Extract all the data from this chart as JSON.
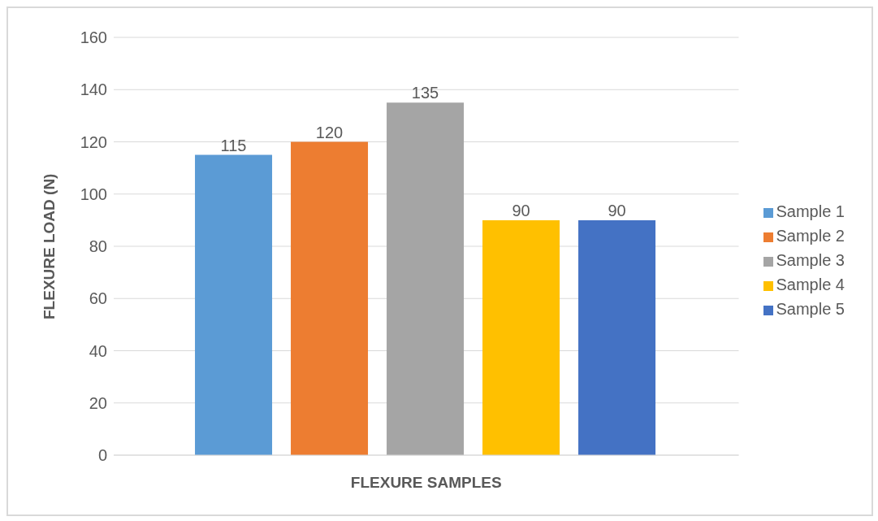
{
  "chart_data": {
    "type": "bar",
    "xlabel": "FLEXURE SAMPLES",
    "ylabel": "FLEXURE LOAD (N)",
    "categories": [
      null
    ],
    "series": [
      {
        "name": "Sample 1",
        "color": "#5b9bd5",
        "values": [
          115
        ]
      },
      {
        "name": "Sample 2",
        "color": "#ed7d31",
        "values": [
          120
        ]
      },
      {
        "name": "Sample 3",
        "color": "#a5a5a5",
        "values": [
          135
        ]
      },
      {
        "name": "Sample 4",
        "color": "#ffc000",
        "values": [
          90
        ]
      },
      {
        "name": "Sample 5",
        "color": "#4472c4",
        "values": [
          90
        ]
      }
    ],
    "ylim": [
      0,
      160
    ],
    "yticks": [
      0,
      20,
      40,
      60,
      80,
      100,
      120,
      140,
      160
    ],
    "grid": "y",
    "legend": "right",
    "data_labels": true
  }
}
